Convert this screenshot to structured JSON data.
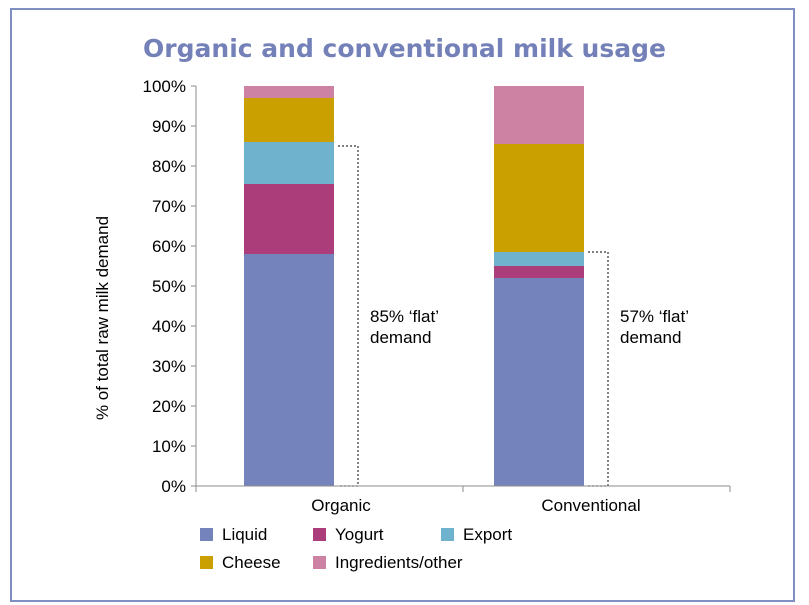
{
  "chart_data": {
    "type": "bar",
    "stacked": true,
    "title": "Organic and conventional milk usage",
    "ylabel": "% of total raw milk demand",
    "xlabel": "",
    "ylim": [
      0,
      100
    ],
    "yticks": [
      "0%",
      "10%",
      "20%",
      "30%",
      "40%",
      "50%",
      "60%",
      "70%",
      "80%",
      "90%",
      "100%"
    ],
    "categories": [
      "Organic",
      "Conventional"
    ],
    "series": [
      {
        "name": "Liquid",
        "color": "#7483bc",
        "values": [
          58,
          52
        ]
      },
      {
        "name": "Yogurt",
        "color": "#ab3e7a",
        "values": [
          17.5,
          3
        ]
      },
      {
        "name": "Export",
        "color": "#6fb2cd",
        "values": [
          10.5,
          3.5
        ]
      },
      {
        "name": "Cheese",
        "color": "#c9a000",
        "values": [
          11,
          27
        ]
      },
      {
        "name": "Ingredients/other",
        "color": "#cd82a4",
        "values": [
          3,
          14.5
        ]
      }
    ],
    "annotations": [
      {
        "category": "Organic",
        "line1": "85% ‘flat’",
        "line2": "demand",
        "at": 85
      },
      {
        "category": "Conventional",
        "line1": "57% ‘flat’",
        "line2": "demand",
        "at": 58.5
      }
    ],
    "legend": {
      "placement": "bottom",
      "order": [
        "Liquid",
        "Yogurt",
        "Export",
        "Cheese",
        "Ingredients/other"
      ]
    },
    "grid": false
  }
}
